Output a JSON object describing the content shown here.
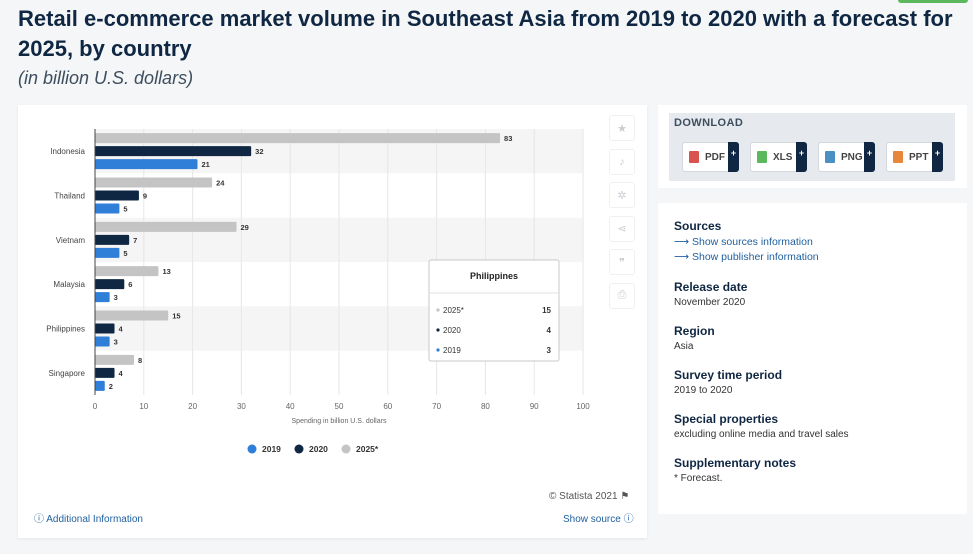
{
  "page": {
    "title": "Retail e-commerce market volume in Southeast Asia from 2019 to 2020 with a forecast for 2025, by country",
    "subtitle": "(in billion U.S. dollars)"
  },
  "chart_data": {
    "type": "bar",
    "orientation": "horizontal",
    "categories": [
      "Indonesia",
      "Thailand",
      "Vietnam",
      "Malaysia",
      "Philippines",
      "Singapore"
    ],
    "series": [
      {
        "name": "2025*",
        "color": "#c4c4c4",
        "values": [
          83,
          24,
          29,
          13,
          15,
          8
        ]
      },
      {
        "name": "2020",
        "color": "#0f2742",
        "values": [
          32,
          9,
          7,
          6,
          4,
          4
        ]
      },
      {
        "name": "2019",
        "color": "#2f7ed8",
        "values": [
          21,
          5,
          5,
          3,
          3,
          2
        ]
      }
    ],
    "legend_order": [
      "2019",
      "2020",
      "2025*"
    ],
    "xlabel": "Spending in billion U.S. dollars",
    "xlim": [
      0,
      100
    ],
    "xticks": [
      0,
      10,
      20,
      30,
      40,
      50,
      60,
      70,
      80,
      90,
      100
    ],
    "grid": true,
    "legend_position": "bottom",
    "tooltip": {
      "title": "Philippines",
      "rows": [
        {
          "label": "2025*",
          "value": "15",
          "color": "#c4c4c4"
        },
        {
          "label": "2020",
          "value": "4",
          "color": "#0f2742"
        },
        {
          "label": "2019",
          "value": "3",
          "color": "#2f7ed8"
        }
      ]
    }
  },
  "footer": {
    "copyright": "© Statista 2021",
    "additional_info": "Additional Information",
    "show_source": "Show source"
  },
  "download": {
    "title": "DOWNLOAD",
    "buttons": [
      {
        "label": "PDF",
        "plus": "+",
        "color": "#d9534f"
      },
      {
        "label": "XLS",
        "plus": "+",
        "color": "#5cb85c"
      },
      {
        "label": "PNG",
        "plus": "+",
        "color": "#4a90c2"
      },
      {
        "label": "PPT",
        "plus": "+",
        "color": "#e8873a"
      }
    ]
  },
  "meta": {
    "sources_title": "Sources",
    "sources_link": "Show sources information",
    "publisher_link": "Show publisher information",
    "release_title": "Release date",
    "release_value": "November 2020",
    "region_title": "Region",
    "region_value": "Asia",
    "period_title": "Survey time period",
    "period_value": "2019 to 2020",
    "special_title": "Special properties",
    "special_value": "excluding online media and travel sales",
    "notes_title": "Supplementary notes",
    "notes_value": "* Forecast."
  },
  "icons": {
    "tools": [
      "star-icon",
      "bell-icon",
      "gear-icon",
      "share-icon",
      "quote-icon",
      "print-icon"
    ]
  }
}
